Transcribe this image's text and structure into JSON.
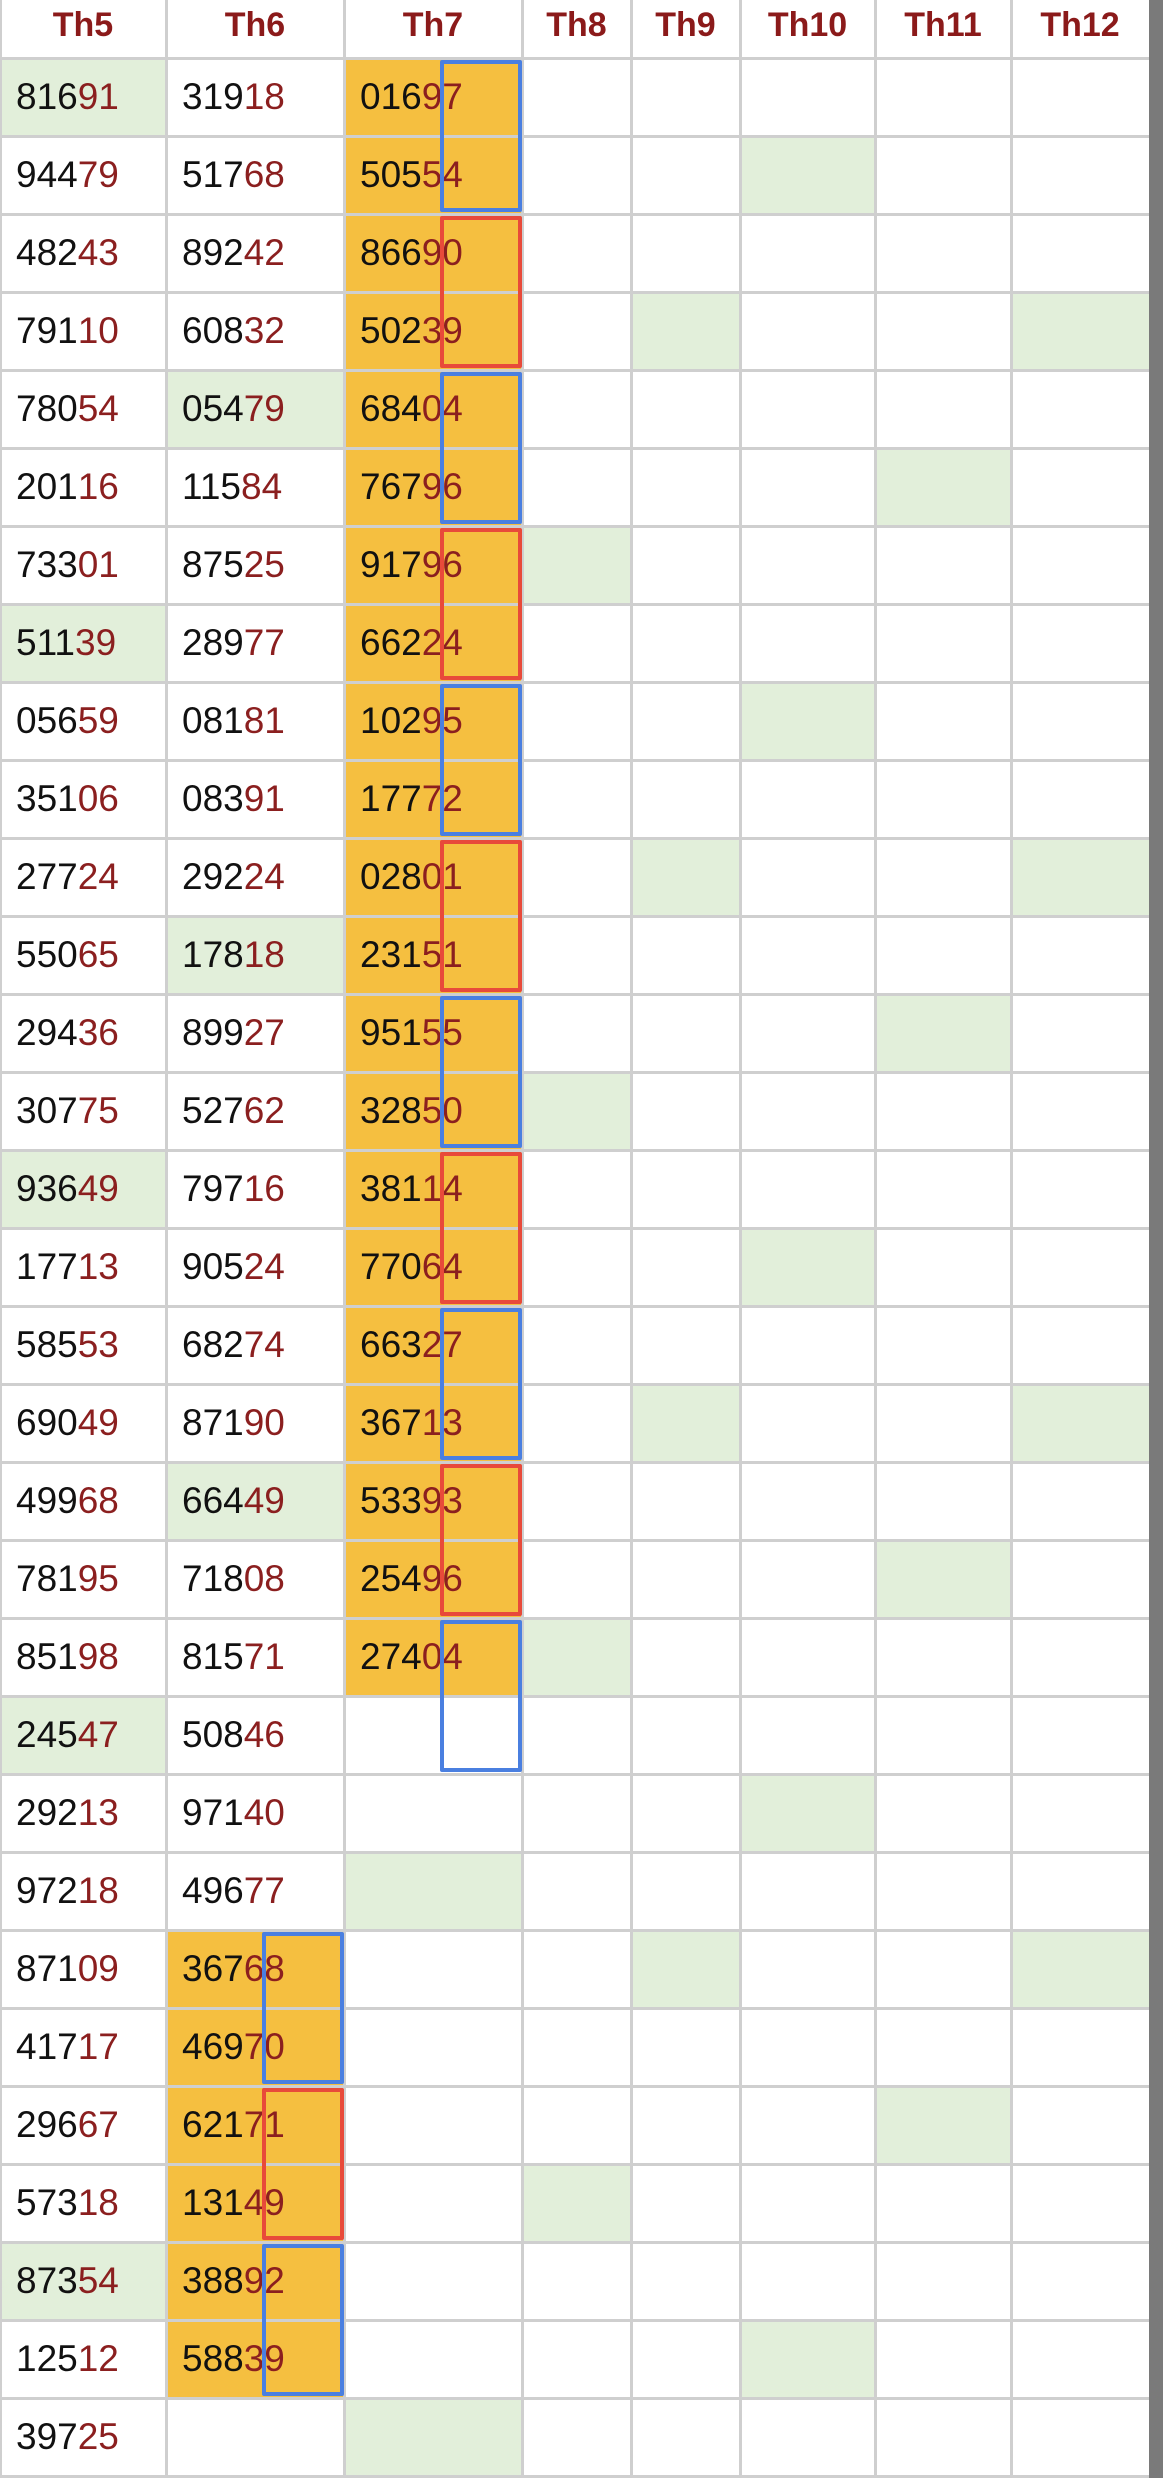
{
  "colors": {
    "header_text": "#8b1a1a",
    "number_tail": "#8b1f1f",
    "highlight_orange": "#f5bf40",
    "highlight_green": "#e2efda",
    "group_blue": "#4a7fe0",
    "group_red": "#e84a3a",
    "grid_line": "#cfcfcf"
  },
  "headers": [
    "Th5",
    "Th6",
    "Th7",
    "Th8",
    "Th9",
    "Th10",
    "Th11",
    "Th12"
  ],
  "th5": [
    "81691",
    "94479",
    "48243",
    "79110",
    "78054",
    "20116",
    "73301",
    "51139",
    "05659",
    "35106",
    "27724",
    "55065",
    "29436",
    "30775",
    "93649",
    "17713",
    "58553",
    "69049",
    "49968",
    "78195",
    "85198",
    "24547",
    "29213",
    "97218",
    "87109",
    "41717",
    "29667",
    "57318",
    "87354",
    "12512",
    "39725"
  ],
  "th6": [
    "31918",
    "51768",
    "89242",
    "60832",
    "05479",
    "11584",
    "87525",
    "28977",
    "08181",
    "08391",
    "29224",
    "17818",
    "89927",
    "52762",
    "79716",
    "90524",
    "68274",
    "87190",
    "66449",
    "71808",
    "81571",
    "50846",
    "97140",
    "49677",
    "36768",
    "46970",
    "62171",
    "13149",
    "38892",
    "58839",
    ""
  ],
  "th7": [
    "01697",
    "50554",
    "86690",
    "50239",
    "68404",
    "76796",
    "91796",
    "66224",
    "10295",
    "17772",
    "02801",
    "23151",
    "95155",
    "32850",
    "38114",
    "77064",
    "66327",
    "36713",
    "53393",
    "25496",
    "27404",
    "",
    "",
    "",
    "",
    "",
    "",
    "",
    "",
    "",
    ""
  ],
  "green_cells": {
    "th5": [
      0,
      7,
      14,
      21,
      28
    ],
    "th6": [
      4,
      11,
      18
    ],
    "th7": [
      23,
      30
    ],
    "th8": [
      6,
      13,
      20,
      27
    ],
    "th9": [
      3,
      10,
      17,
      24
    ],
    "th10": [
      1,
      8,
      15,
      22,
      29
    ],
    "th11": [
      5,
      12,
      19,
      26
    ],
    "th12": [
      3,
      10,
      17,
      24
    ]
  },
  "orange_cells": {
    "th6": [
      24,
      25,
      26,
      27,
      28,
      29
    ],
    "th7": [
      0,
      1,
      2,
      3,
      4,
      5,
      6,
      7,
      8,
      9,
      10,
      11,
      12,
      13,
      14,
      15,
      16,
      17,
      18,
      19,
      20
    ]
  },
  "groups": {
    "th7": [
      {
        "start": 0,
        "rows": 2,
        "color": "blue"
      },
      {
        "start": 2,
        "rows": 2,
        "color": "red"
      },
      {
        "start": 4,
        "rows": 2,
        "color": "blue"
      },
      {
        "start": 6,
        "rows": 2,
        "color": "red"
      },
      {
        "start": 8,
        "rows": 2,
        "color": "blue"
      },
      {
        "start": 10,
        "rows": 2,
        "color": "red"
      },
      {
        "start": 12,
        "rows": 2,
        "color": "blue"
      },
      {
        "start": 14,
        "rows": 2,
        "color": "red"
      },
      {
        "start": 16,
        "rows": 2,
        "color": "blue"
      },
      {
        "start": 18,
        "rows": 2,
        "color": "red"
      },
      {
        "start": 20,
        "rows": 2,
        "color": "blue"
      }
    ],
    "th6": [
      {
        "start": 24,
        "rows": 2,
        "color": "blue"
      },
      {
        "start": 26,
        "rows": 2,
        "color": "red"
      },
      {
        "start": 28,
        "rows": 2,
        "color": "blue"
      }
    ]
  }
}
